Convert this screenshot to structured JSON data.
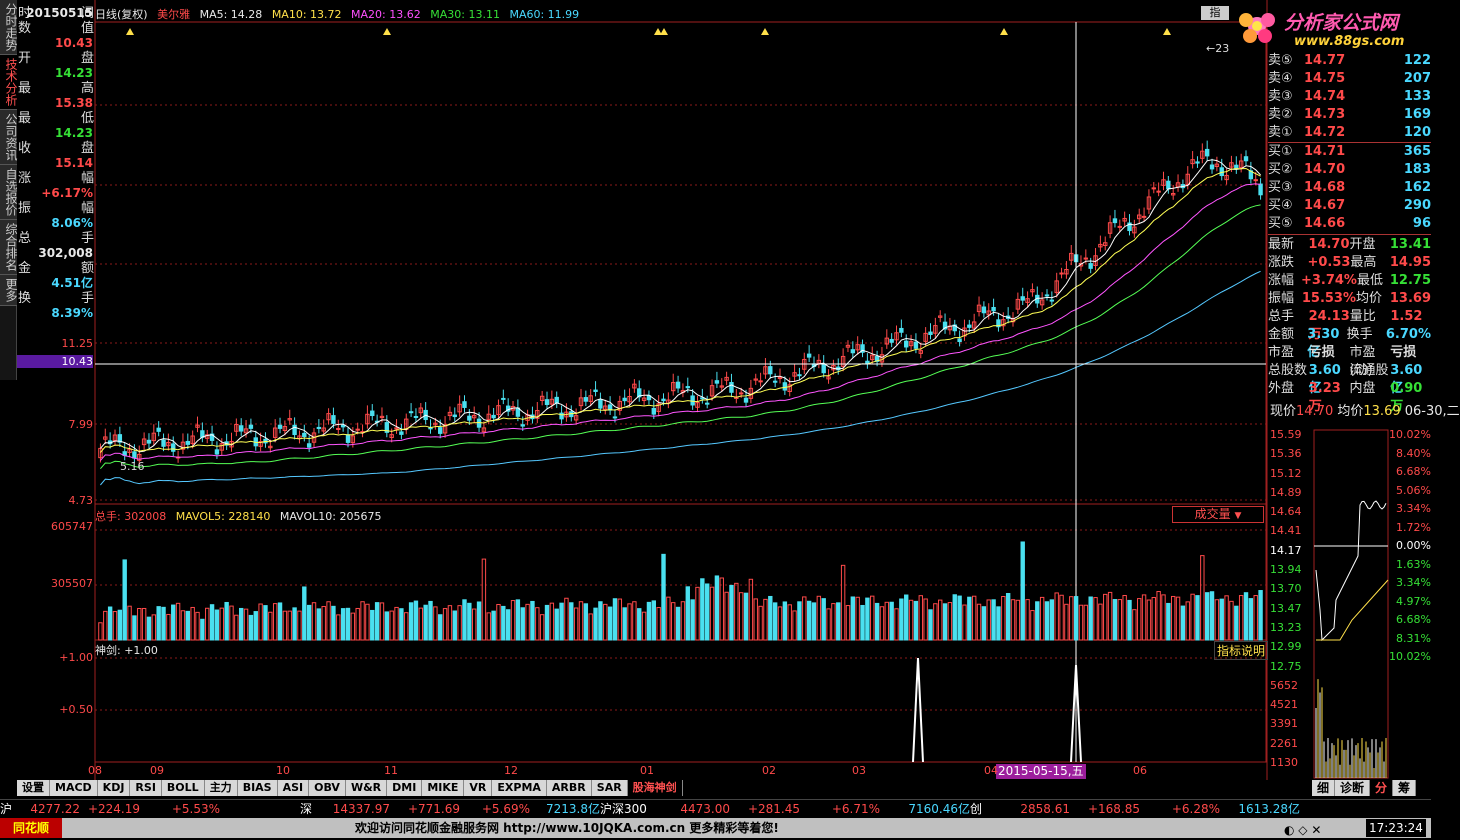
{
  "vtabs": [
    "分时走势",
    "技术分析",
    "公司资讯",
    "自选报价",
    "综合排名",
    "更多"
  ],
  "info": [
    {
      "k1": "时",
      "k2": "间",
      "v": "20150515",
      "c": "white"
    },
    {
      "k1": "数",
      "k2": "值",
      "v": "10.43",
      "c": "red"
    },
    {
      "k1": "开",
      "k2": "盘",
      "v": "14.23",
      "c": "green"
    },
    {
      "k1": "最",
      "k2": "高",
      "v": "15.38",
      "c": "red"
    },
    {
      "k1": "最",
      "k2": "低",
      "v": "14.23",
      "c": "green"
    },
    {
      "k1": "收",
      "k2": "盘",
      "v": "15.14",
      "c": "red"
    },
    {
      "k1": "涨",
      "k2": "幅",
      "v": "+6.17%",
      "c": "red"
    },
    {
      "k1": "振",
      "k2": "幅",
      "v": "8.06%",
      "c": "cyan"
    },
    {
      "k1": "总",
      "k2": "手",
      "v": "302,008",
      "c": "white"
    },
    {
      "k1": "金",
      "k2": "额",
      "v": "4.51亿",
      "c": "cyan"
    },
    {
      "k1": "换",
      "k2": "手",
      "v": "8.39%",
      "c": "cyan"
    }
  ],
  "price_axis": [
    "11.25",
    "10.43",
    "7.99",
    "4.73"
  ],
  "vol_axis": [
    "605747",
    "305507"
  ],
  "ind_axis": [
    "+1.00",
    "+0.50"
  ],
  "topbar": {
    "period": "日线(复权)",
    "name": "美尔雅",
    "ma5": "MA5: 14.28",
    "ma10": "MA10: 13.72",
    "ma20": "MA20: 13.62",
    "ma30": "MA30: 13.11",
    "ma60": "MA60: 11.99"
  },
  "chart_labels": {
    "hi": "23",
    "lo": "5.16"
  },
  "volbar": {
    "label": "总手: 302008",
    "mavol5": "MAVOL5: 228140",
    "mavol10": "MAVOL10: 205675",
    "select": "成交量"
  },
  "indbar": {
    "label": "神剑: +1.00",
    "help": "指标说明"
  },
  "dates": [
    "08",
    "09",
    "10",
    "11",
    "12",
    "01",
    "02",
    "03",
    "04",
    "06"
  ],
  "crosshair_date": "2015-05-15,五",
  "orderbook": [
    {
      "l": "卖⑤",
      "p": "14.77",
      "v": "122"
    },
    {
      "l": "卖④",
      "p": "14.75",
      "v": "207"
    },
    {
      "l": "卖③",
      "p": "14.74",
      "v": "133"
    },
    {
      "l": "卖②",
      "p": "14.73",
      "v": "169"
    },
    {
      "l": "卖①",
      "p": "14.72",
      "v": "120"
    },
    {
      "l": "买①",
      "p": "14.71",
      "v": "365"
    },
    {
      "l": "买②",
      "p": "14.70",
      "v": "183"
    },
    {
      "l": "买③",
      "p": "14.68",
      "v": "162"
    },
    {
      "l": "买④",
      "p": "14.67",
      "v": "290"
    },
    {
      "l": "买⑤",
      "p": "14.66",
      "v": "96"
    }
  ],
  "stats": [
    [
      "最新",
      "14.70",
      "开盘",
      "13.41"
    ],
    [
      "涨跌",
      "+0.53",
      "最高",
      "14.95"
    ],
    [
      "涨幅",
      "+3.74%",
      "最低",
      "12.75"
    ],
    [
      "振幅",
      "15.53%",
      "均价",
      "13.69"
    ],
    [
      "总手",
      "24.13万",
      "量比",
      "1.52"
    ],
    [
      "金额",
      "3.30亿",
      "换手",
      "6.70%"
    ],
    [
      "市盈",
      "亏损",
      "市盈(动)",
      "亏损"
    ],
    [
      "总股数",
      "3.60亿",
      "流通股",
      "3.60亿"
    ],
    [
      "外盘",
      "3.23万",
      "内盘",
      "0.90万"
    ]
  ],
  "mini": {
    "now": "现价",
    "now_v": "14.70",
    "avg": "均价",
    "avg_v": "13.69",
    "date": "06-30,二",
    "left": [
      "15.59",
      "15.36",
      "15.12",
      "14.89",
      "14.64",
      "14.41",
      "14.17",
      "13.94",
      "13.70",
      "13.47",
      "13.23",
      "12.99",
      "12.75",
      "5652",
      "4521",
      "3391",
      "2261",
      "1130"
    ],
    "right": [
      "10.02%",
      "8.40%",
      "6.68%",
      "5.06%",
      "3.34%",
      "1.72%",
      "0.00%",
      "1.63%",
      "3.34%",
      "4.97%",
      "6.68%",
      "8.31%",
      "10.02%"
    ]
  },
  "mini_tabs": [
    "细",
    "诊断",
    "分",
    "筹"
  ],
  "btabs": [
    "设置",
    "MACD",
    "KDJ",
    "RSI",
    "BOLL",
    "主力",
    "BIAS",
    "ASI",
    "OBV",
    "W&R",
    "DMI",
    "MIKE",
    "VR",
    "EXPMA",
    "ARBR",
    "SAR",
    "股海神剑"
  ],
  "status": [
    {
      "n": "沪",
      "v": "4277.22",
      "c": "+224.19",
      "p": "+5.53%",
      "a": ""
    },
    {
      "n": "深",
      "v": "14337.97",
      "c": "+771.69",
      "p": "+5.69%",
      "a": "7213.8亿"
    },
    {
      "n": "沪深300",
      "v": "4473.00",
      "c": "+281.45",
      "p": "+6.71%",
      "a": "7160.46亿"
    },
    {
      "n": "创",
      "v": "2858.61",
      "c": "+168.85",
      "p": "+6.28%",
      "a": "1613.28亿"
    }
  ],
  "footer": {
    "left": "同花顺",
    "msg": "欢迎访问同花顺金融服务网 http://www.10JQKA.com.cn 更多精彩等着您!",
    "time": "17:23:24"
  },
  "logo": {
    "title": "分析家公式网",
    "url": "www.88gs.com"
  },
  "colors": {
    "up": "#ff4a4a",
    "down": "#4ae0f0",
    "ma5": "#ffffff",
    "ma10": "#ffff55",
    "ma20": "#ff55ff",
    "ma30": "#55ff55",
    "ma60": "#55c8ff"
  }
}
